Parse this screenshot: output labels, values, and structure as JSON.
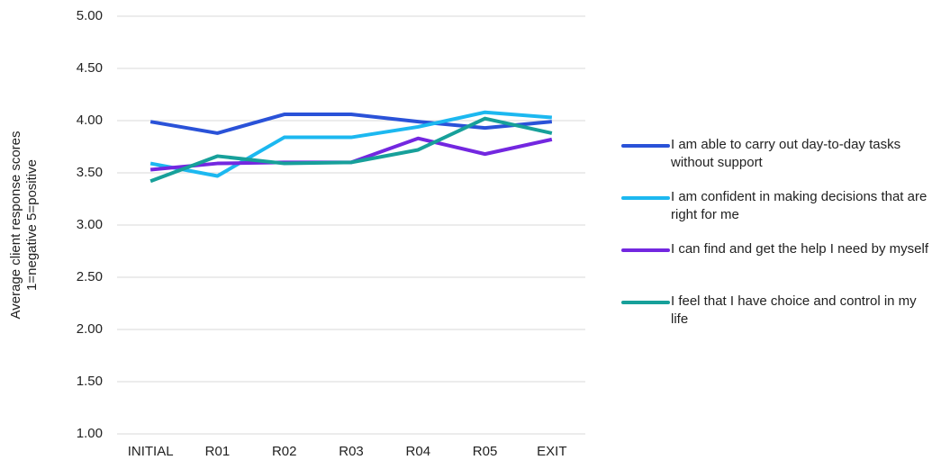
{
  "chart_data": {
    "type": "line",
    "y_label": [
      "Average client response scores",
      "1=negative 5=positive"
    ],
    "categories": [
      "INITIAL",
      "R01",
      "R02",
      "R03",
      "R04",
      "R05",
      "EXIT"
    ],
    "series": [
      {
        "name": "I am able to carry out day-to-day tasks without support",
        "color": "#2a52d8",
        "values": [
          3.99,
          3.88,
          4.06,
          4.06,
          3.99,
          3.93,
          3.99
        ]
      },
      {
        "name": "I am confident in making decisions that are right for me",
        "color": "#1cb8f0",
        "values": [
          3.59,
          3.47,
          3.84,
          3.84,
          3.94,
          4.08,
          4.03
        ]
      },
      {
        "name": "I can find and get the help I need by myself",
        "color": "#7327e0",
        "values": [
          3.53,
          3.59,
          3.6,
          3.6,
          3.83,
          3.68,
          3.82
        ]
      },
      {
        "name": "I feel that I have choice and control in my life",
        "color": "#17a09a",
        "values": [
          3.42,
          3.66,
          3.59,
          3.6,
          3.72,
          4.02,
          3.88
        ]
      }
    ],
    "ylim": [
      1,
      5
    ],
    "yticks": [
      {
        "value": 1,
        "label": "1.00"
      },
      {
        "value": 1.5,
        "label": "1.50"
      },
      {
        "value": 2,
        "label": "2.00"
      },
      {
        "value": 2.5,
        "label": "2.50"
      },
      {
        "value": 3,
        "label": "3.00"
      },
      {
        "value": 3.5,
        "label": "3.50"
      },
      {
        "value": 4,
        "label": "4.00"
      },
      {
        "value": 4.5,
        "label": "4.50"
      },
      {
        "value": 5,
        "label": "5.00"
      }
    ],
    "grid": true,
    "legend": "right"
  }
}
